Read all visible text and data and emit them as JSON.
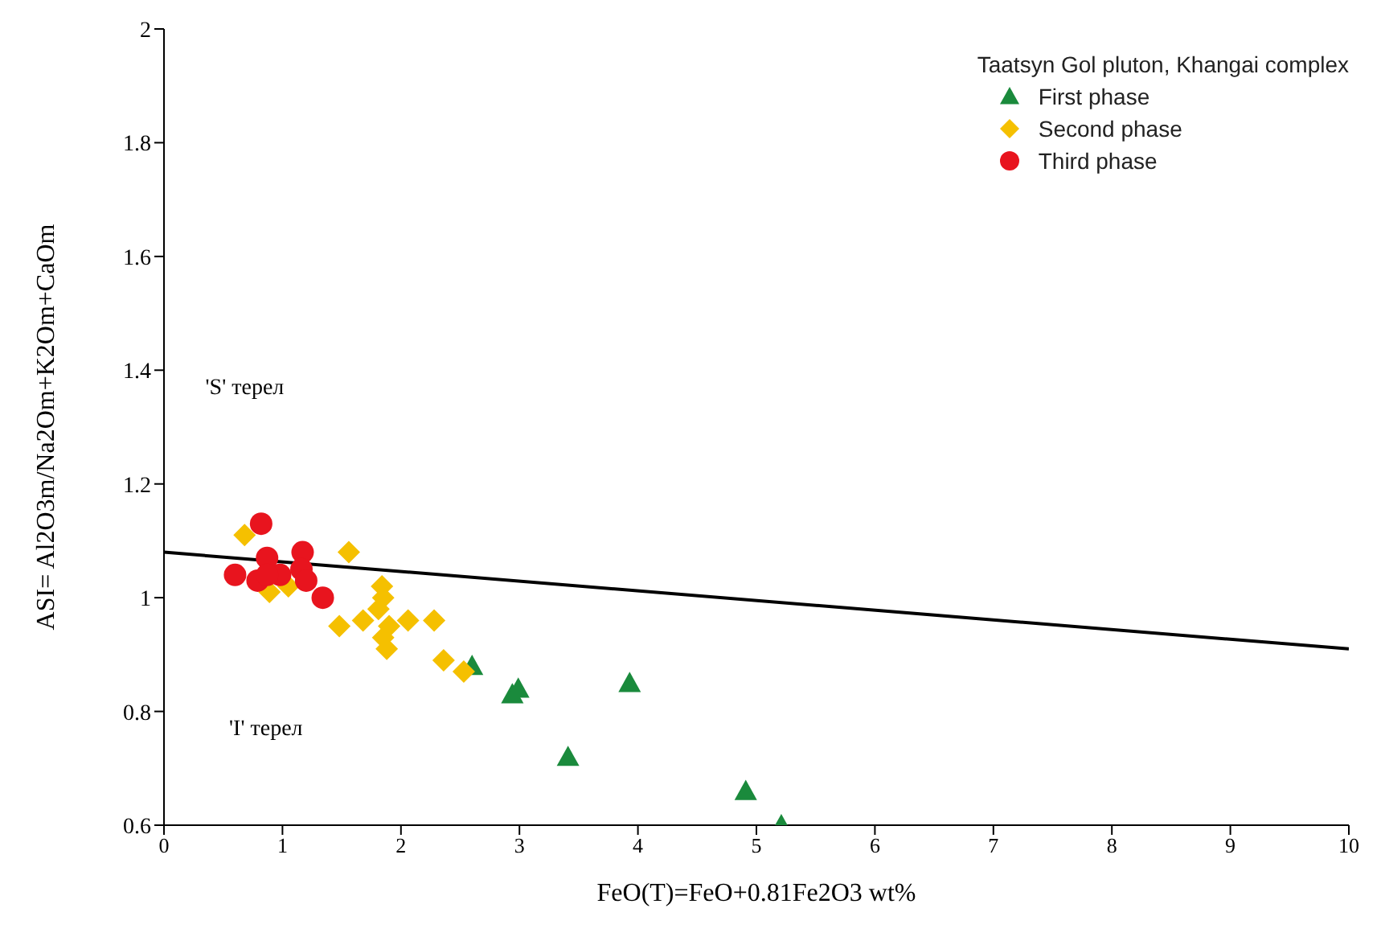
{
  "chart_data": {
    "type": "scatter",
    "xlabel": "FeO(T)=FeO+0.81Fe2O3 wt%",
    "ylabel": "ASI= Al2O3m/Na2Om+K2Om+CaOm",
    "legend_title": "Taatsyn Gol pluton, Khangai complex",
    "legend": "top right",
    "grid": false,
    "xlim": [
      0,
      10
    ],
    "xticks": [
      0,
      1,
      2,
      3,
      4,
      5,
      6,
      7,
      8,
      9,
      10
    ],
    "ylim": [
      0.6,
      2
    ],
    "yticks": [
      0.6,
      0.8,
      1,
      1.2,
      1.4,
      1.6,
      1.8,
      2
    ],
    "annotations": [
      "'S' терел",
      "'I' терел"
    ],
    "series": [
      {
        "type": "line",
        "color": "#000000",
        "marker": "none",
        "x": [
          0,
          10
        ],
        "values": [
          1.08,
          0.91
        ]
      },
      {
        "name": "First phase",
        "color": "#1a8a3c",
        "marker": "triangle",
        "x": [
          2.6,
          2.94,
          2.99,
          3.93,
          3.41,
          4.91,
          5.21
        ],
        "values": [
          0.88,
          0.83,
          0.84,
          0.85,
          0.72,
          0.66,
          0.6
        ]
      },
      {
        "name": "Second phase",
        "color": "#f5c000",
        "marker": "diamond",
        "x": [
          0.68,
          1.56,
          0.89,
          1.05,
          1.84,
          1.85,
          1.48,
          1.68,
          1.81,
          1.9,
          1.85,
          1.88,
          2.06,
          2.28,
          2.36,
          2.53
        ],
        "values": [
          1.11,
          1.08,
          1.01,
          1.02,
          1.02,
          1.0,
          0.95,
          0.96,
          0.98,
          0.95,
          0.93,
          0.91,
          0.96,
          0.96,
          0.89,
          0.87
        ]
      },
      {
        "name": "Third phase",
        "color": "#e8141e",
        "marker": "circle",
        "x": [
          0.82,
          0.6,
          0.79,
          0.87,
          0.98,
          1.17,
          1.16,
          1.2,
          1.34,
          0.87
        ],
        "values": [
          1.13,
          1.04,
          1.03,
          1.07,
          1.04,
          1.08,
          1.05,
          1.03,
          1.0,
          1.04
        ]
      }
    ]
  }
}
